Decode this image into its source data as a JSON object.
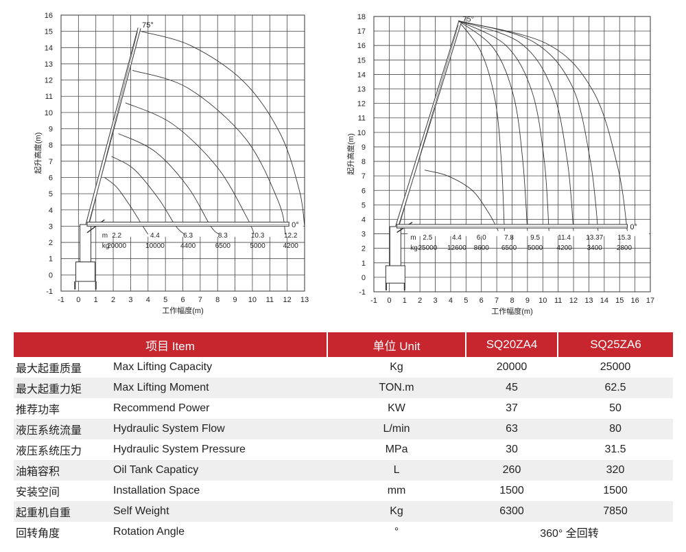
{
  "chart_data": [
    {
      "type": "line",
      "title": "",
      "xlabel": "工作幅度(m)",
      "ylabel": "起升高度(m)",
      "xlim": [
        -1,
        13
      ],
      "ylim": [
        -1,
        16
      ],
      "xticks": [
        "-1",
        "0",
        "1",
        "2",
        "3",
        "4",
        "5",
        "6",
        "7",
        "8",
        "9",
        "10",
        "11",
        "12",
        "13"
      ],
      "yticks": [
        "-1",
        "0",
        "1",
        "2",
        "3",
        "4",
        "5",
        "6",
        "7",
        "8",
        "9",
        "10",
        "11",
        "12",
        "13",
        "14",
        "15",
        "16"
      ],
      "angle_labels": [
        "75°",
        "0°"
      ],
      "load_table": {
        "m_label": "m",
        "kg_label": "kg",
        "radius": [
          "2.2",
          "4.4",
          "6.3",
          "8.3",
          "10.3",
          "12.2"
        ],
        "load": [
          "20000",
          "10000",
          "4400",
          "6500",
          "5000",
          "4200"
        ]
      },
      "series": [
        {
          "points": [
            [
              1.5,
              6.0
            ],
            [
              2.2,
              5.4
            ],
            [
              3.0,
              4.2
            ],
            [
              3.7,
              3.0
            ],
            [
              4.0,
              2.5
            ]
          ]
        },
        {
          "points": [
            [
              1.9,
              7.3
            ],
            [
              3.2,
              6.5
            ],
            [
              4.6,
              4.7
            ],
            [
              5.6,
              3.0
            ],
            [
              6.1,
              2.5
            ]
          ]
        },
        {
          "points": [
            [
              2.3,
              8.7
            ],
            [
              4.4,
              7.6
            ],
            [
              6.3,
              5.4
            ],
            [
              7.6,
              3.0
            ],
            [
              8.1,
              2.5
            ]
          ]
        },
        {
          "points": [
            [
              2.7,
              10.6
            ],
            [
              5.4,
              9.3
            ],
            [
              8.0,
              6.6
            ],
            [
              9.7,
              3.5
            ],
            [
              10.1,
              2.5
            ]
          ]
        },
        {
          "points": [
            [
              3.1,
              12.6
            ],
            [
              6.3,
              11.5
            ],
            [
              9.6,
              8.4
            ],
            [
              11.5,
              4.5
            ],
            [
              11.9,
              2.5
            ]
          ]
        },
        {
          "points": [
            [
              3.6,
              15.0
            ],
            [
              6.5,
              14.1
            ],
            [
              9.5,
              11.9
            ],
            [
              11.6,
              8.7
            ],
            [
              12.7,
              5.2
            ],
            [
              13.0,
              3.0
            ]
          ]
        }
      ]
    },
    {
      "type": "line",
      "title": "",
      "xlabel": "工作幅度(m)",
      "ylabel": "起升高度(m)",
      "xlim": [
        -1,
        17
      ],
      "ylim": [
        -1,
        18
      ],
      "xticks": [
        "-1",
        "0",
        "1",
        "2",
        "3",
        "4",
        "5",
        "6",
        "7",
        "8",
        "9",
        "10",
        "11",
        "12",
        "13",
        "14",
        "15",
        "16",
        "17"
      ],
      "yticks": [
        "-1",
        "0",
        "1",
        "2",
        "3",
        "4",
        "5",
        "6",
        "7",
        "8",
        "9",
        "10",
        "11",
        "12",
        "13",
        "14",
        "15",
        "16",
        "17",
        "18"
      ],
      "angle_labels": [
        "75°",
        "0°"
      ],
      "load_table": {
        "m_label": "m",
        "kg_label": "kg",
        "radius": [
          "2.5",
          "4.4",
          "6.0",
          "7.8",
          "9.5",
          "11.4",
          "13.37",
          "15.3"
        ],
        "load": [
          "25000",
          "12600",
          "8600",
          "6500",
          "5000",
          "4200",
          "3400",
          "2800"
        ]
      },
      "series": [
        {
          "points": [
            [
              2.3,
              7.4
            ],
            [
              3.8,
              7.0
            ],
            [
              5.4,
              6.0
            ],
            [
              6.5,
              4.4
            ],
            [
              7.1,
              3.2
            ]
          ]
        },
        {
          "points": [
            [
              4.5,
              17.7
            ],
            [
              6.0,
              15.5
            ],
            [
              6.9,
              12.2
            ],
            [
              7.3,
              8.0
            ],
            [
              7.5,
              3.2
            ]
          ]
        },
        {
          "points": [
            [
              4.5,
              17.7
            ],
            [
              6.8,
              15.8
            ],
            [
              8.1,
              12.5
            ],
            [
              8.7,
              8.0
            ],
            [
              9.0,
              3.2
            ]
          ]
        },
        {
          "points": [
            [
              4.5,
              17.7
            ],
            [
              7.6,
              16.0
            ],
            [
              9.3,
              12.8
            ],
            [
              10.1,
              8.0
            ],
            [
              10.4,
              3.2
            ]
          ]
        },
        {
          "points": [
            [
              4.5,
              17.7
            ],
            [
              8.5,
              16.2
            ],
            [
              10.6,
              13.0
            ],
            [
              11.6,
              8.0
            ],
            [
              12.0,
              3.2
            ]
          ]
        },
        {
          "points": [
            [
              4.5,
              17.7
            ],
            [
              9.3,
              16.3
            ],
            [
              11.9,
              13.2
            ],
            [
              13.1,
              8.0
            ],
            [
              13.6,
              3.2
            ]
          ]
        },
        {
          "points": [
            [
              4.5,
              17.7
            ],
            [
              10.3,
              16.1
            ],
            [
              13.3,
              12.8
            ],
            [
              14.9,
              7.5
            ],
            [
              15.5,
              3.2
            ]
          ]
        }
      ]
    }
  ],
  "spec_table": {
    "headers": {
      "item": "项目 Item",
      "unit": "单位 Unit",
      "model_a": "SQ20ZA4",
      "model_b": "SQ25ZA6"
    },
    "rows": [
      {
        "zh": "最大起重质量",
        "en": "Max Lifting Capacity",
        "unit": "Kg",
        "a": "20000",
        "b": "25000"
      },
      {
        "zh": "最大起重力矩",
        "en": "Max Lifting Moment",
        "unit": "TON.m",
        "a": "45",
        "b": "62.5"
      },
      {
        "zh": "推荐功率",
        "en": "Recommend Power",
        "unit": "KW",
        "a": "37",
        "b": "50"
      },
      {
        "zh": "液压系统流量",
        "en": "Hydraulic System Flow",
        "unit": "L/min",
        "a": "63",
        "b": "80"
      },
      {
        "zh": "液压系统压力",
        "en": "Hydraulic System Pressure",
        "unit": "MPa",
        "a": "30",
        "b": "31.5"
      },
      {
        "zh": "油箱容积",
        "en": "Oil Tank Capaticy",
        "unit": "L",
        "a": "260",
        "b": "320"
      },
      {
        "zh": "安装空间",
        "en": "Installation Space",
        "unit": "mm",
        "a": "1500",
        "b": "1500"
      },
      {
        "zh": "起重机自重",
        "en": "Self Weight",
        "unit": "Kg",
        "a": "6300",
        "b": "7850"
      }
    ],
    "last_row": {
      "zh": "回转角度",
      "en": "Rotation Angle",
      "unit": "°",
      "value": "360° 全回转"
    }
  }
}
